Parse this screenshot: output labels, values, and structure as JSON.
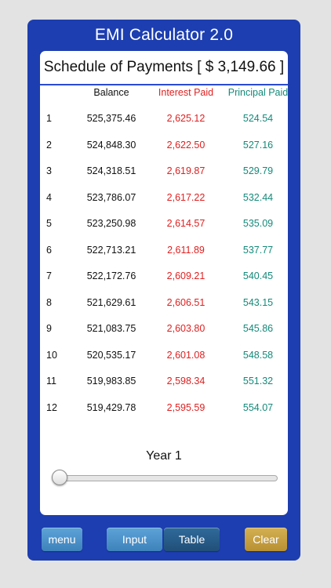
{
  "app": {
    "title": "EMI Calculator 2.0"
  },
  "schedule": {
    "header": "Schedule of Payments [ $ 3,149.66 ]",
    "columns": {
      "balance": "Balance",
      "interest": "Interest Paid",
      "principal": "Principal Paid"
    },
    "rows": [
      {
        "no": "1",
        "balance": "525,375.46",
        "interest": "2,625.12",
        "principal": "524.54"
      },
      {
        "no": "2",
        "balance": "524,848.30",
        "interest": "2,622.50",
        "principal": "527.16"
      },
      {
        "no": "3",
        "balance": "524,318.51",
        "interest": "2,619.87",
        "principal": "529.79"
      },
      {
        "no": "4",
        "balance": "523,786.07",
        "interest": "2,617.22",
        "principal": "532.44"
      },
      {
        "no": "5",
        "balance": "523,250.98",
        "interest": "2,614.57",
        "principal": "535.09"
      },
      {
        "no": "6",
        "balance": "522,713.21",
        "interest": "2,611.89",
        "principal": "537.77"
      },
      {
        "no": "7",
        "balance": "522,172.76",
        "interest": "2,609.21",
        "principal": "540.45"
      },
      {
        "no": "8",
        "balance": "521,629.61",
        "interest": "2,606.51",
        "principal": "543.15"
      },
      {
        "no": "9",
        "balance": "521,083.75",
        "interest": "2,603.80",
        "principal": "545.86"
      },
      {
        "no": "10",
        "balance": "520,535.17",
        "interest": "2,601.08",
        "principal": "548.58"
      },
      {
        "no": "11",
        "balance": "519,983.85",
        "interest": "2,598.34",
        "principal": "551.32"
      },
      {
        "no": "12",
        "balance": "519,429.78",
        "interest": "2,595.59",
        "principal": "554.07"
      }
    ]
  },
  "year_selector": {
    "label": "Year 1",
    "slider_position": 0
  },
  "toolbar": {
    "menu_label": "menu",
    "input_label": "Input",
    "table_label": "Table",
    "clear_label": "Clear"
  },
  "colors": {
    "frame": "#1d3eb0",
    "interest": "#e02020",
    "principal": "#138a7a",
    "clear_button": "#c9a443",
    "tab_active": "#2a5d8a"
  }
}
